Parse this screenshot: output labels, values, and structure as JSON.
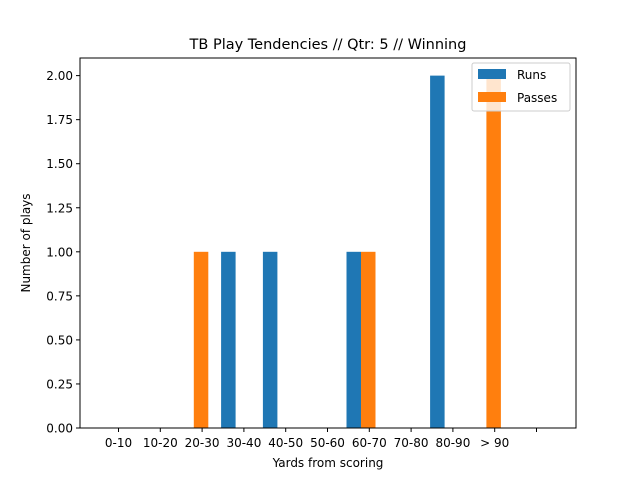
{
  "chart_data": {
    "type": "bar",
    "title": "TB Play Tendencies // Qtr: 5 // Winning",
    "xlabel": "Yards from scoring",
    "ylabel": "Number of plays",
    "categories": [
      "0-10",
      "10-20",
      "20-30",
      "30-40",
      "40-50",
      "50-60",
      "60-70",
      "70-80",
      "80-90",
      "> 90"
    ],
    "series": [
      {
        "name": "Runs",
        "color": "#1f77b4",
        "values": [
          0,
          0,
          1,
          1,
          0,
          1,
          0,
          2,
          0,
          0
        ]
      },
      {
        "name": "Passes",
        "color": "#ff7f0e",
        "values": [
          0,
          1,
          0,
          0,
          0,
          1,
          0,
          0,
          2,
          0
        ]
      }
    ],
    "ylim": [
      0,
      2.1
    ],
    "yticks": [
      "0.00",
      "0.25",
      "0.50",
      "0.75",
      "1.00",
      "1.25",
      "1.50",
      "1.75",
      "2.00"
    ],
    "grid": false,
    "legend_position": "top-right"
  }
}
